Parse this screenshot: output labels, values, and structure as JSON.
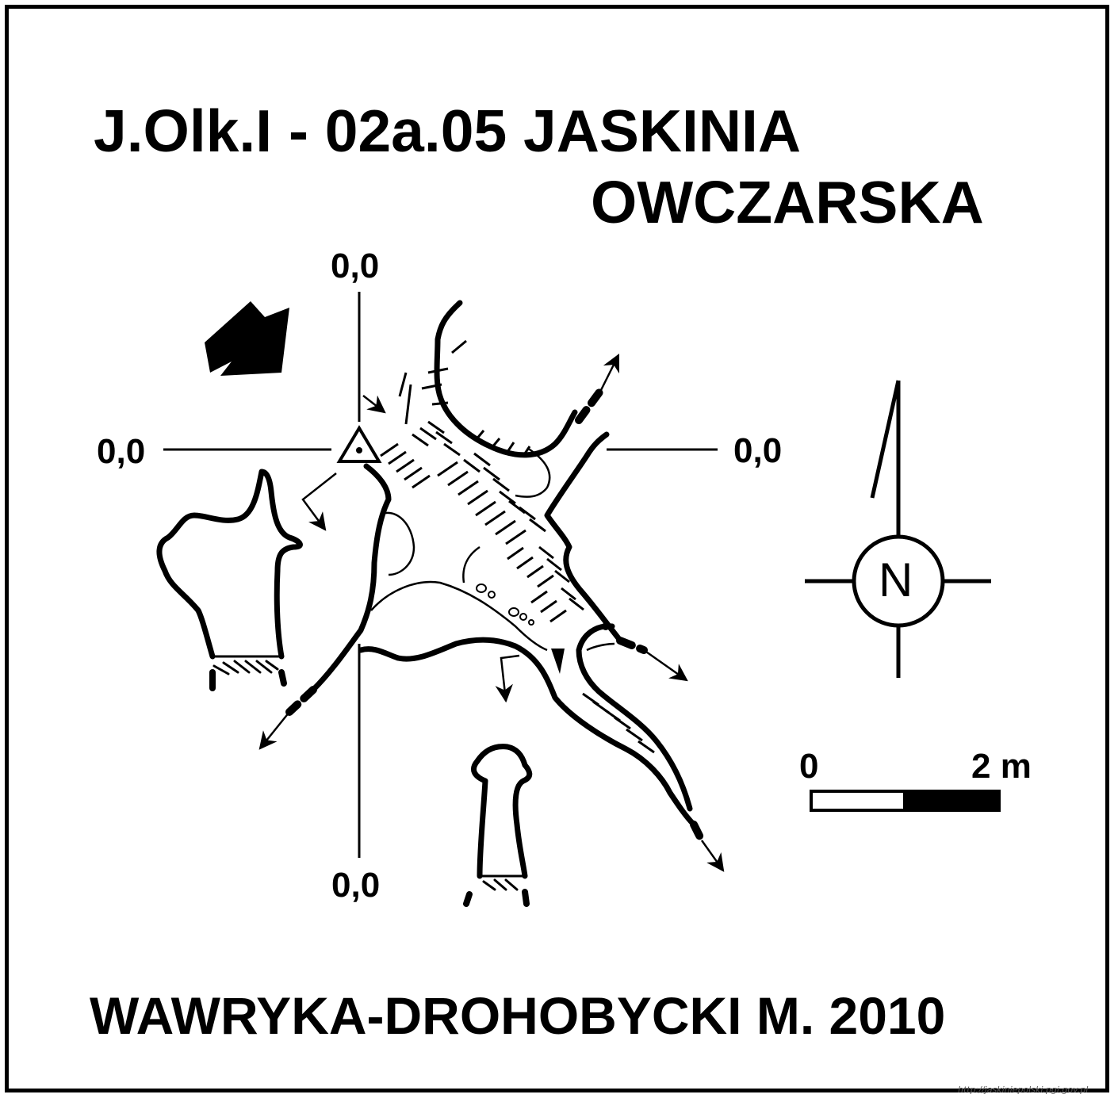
{
  "title": {
    "line1": "J.Olk.I - 02a.05  JASKINIA",
    "line2": "OWCZARSKA"
  },
  "datum_labels": {
    "top": "0,0",
    "left": "0,0",
    "right": "0,0",
    "bottom": "0,0"
  },
  "north_arrow": {
    "letter": "N"
  },
  "scale_bar": {
    "start_label": "0",
    "end_label": "2 m"
  },
  "author": "WAWRYKA-DROHOBYCKI M. 2010",
  "source_url": "http://jaskiniepolski.pgi.gov.pl",
  "colors": {
    "ink": "#000000",
    "paper": "#ffffff"
  }
}
